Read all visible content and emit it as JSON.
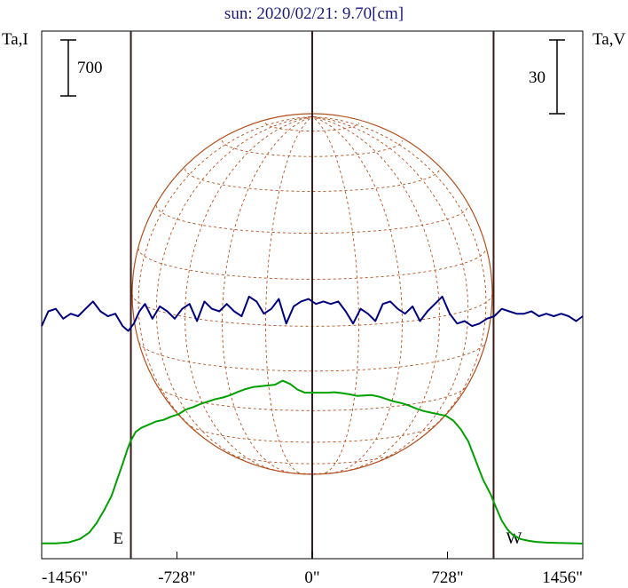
{
  "chart_data": {
    "type": "line",
    "title": "sun: 2020/02/21: 9.70[cm]",
    "y_left_label": "Ta,I",
    "y_right_label": "Ta,V",
    "left_scale_bar_value": "700",
    "right_scale_bar_value": "30",
    "x_ticks": [
      -1456,
      -728,
      0,
      728,
      1456
    ],
    "x_tick_labels": [
      "-1456\"",
      "-728\"",
      "0\"",
      "728\"",
      "1456\""
    ],
    "xlim": [
      -1456,
      1456
    ],
    "vertical_markers": [
      {
        "x": -976,
        "label": "E"
      },
      {
        "x": 0,
        "label": ""
      },
      {
        "x": 976,
        "label": "W"
      }
    ],
    "colors": {
      "stokes_i": "#00a000",
      "stokes_v": "#00007f",
      "disk": "#b4501e",
      "markers": "#3a1a1a",
      "title": "#1a1a7a"
    },
    "series": [
      {
        "name": "I",
        "color": "#00a000",
        "x": [
          -1456,
          -1380,
          -1310,
          -1250,
          -1200,
          -1160,
          -1120,
          -1080,
          -1050,
          -1020,
          -995,
          -976,
          -950,
          -920,
          -880,
          -840,
          -800,
          -760,
          -720,
          -680,
          -640,
          -600,
          -560,
          -520,
          -480,
          -440,
          -400,
          -360,
          -320,
          -280,
          -240,
          -200,
          -160,
          -120,
          -80,
          -40,
          0,
          40,
          80,
          120,
          160,
          200,
          240,
          280,
          320,
          360,
          400,
          440,
          480,
          520,
          560,
          600,
          640,
          680,
          720,
          760,
          800,
          840,
          880,
          920,
          960,
          990,
          1020,
          1050,
          1080,
          1120,
          1160,
          1200,
          1260,
          1320,
          1380,
          1456
        ],
        "values": [
          24,
          26,
          38,
          80,
          160,
          280,
          440,
          620,
          820,
          1020,
          1200,
          1310,
          1420,
          1470,
          1510,
          1550,
          1570,
          1610,
          1640,
          1700,
          1730,
          1770,
          1800,
          1830,
          1850,
          1880,
          1920,
          1955,
          1980,
          1990,
          2000,
          2010,
          2060,
          2020,
          1950,
          1910,
          1910,
          1910,
          1910,
          1915,
          1905,
          1890,
          1870,
          1875,
          1880,
          1860,
          1830,
          1800,
          1780,
          1750,
          1710,
          1680,
          1660,
          1640,
          1620,
          1560,
          1450,
          1300,
          1060,
          820,
          640,
          470,
          310,
          200,
          130,
          80,
          60,
          45,
          35,
          30,
          28,
          22
        ]
      },
      {
        "name": "V",
        "color": "#00007f",
        "x": [
          -1456,
          -1420,
          -1380,
          -1340,
          -1300,
          -1260,
          -1220,
          -1180,
          -1140,
          -1100,
          -1060,
          -1020,
          -990,
          -960,
          -930,
          -900,
          -860,
          -820,
          -780,
          -740,
          -700,
          -660,
          -620,
          -580,
          -540,
          -500,
          -460,
          -420,
          -380,
          -340,
          -300,
          -260,
          -220,
          -180,
          -140,
          -100,
          -60,
          -20,
          20,
          60,
          100,
          140,
          180,
          220,
          260,
          300,
          340,
          380,
          420,
          460,
          500,
          540,
          580,
          620,
          660,
          700,
          740,
          780,
          820,
          860,
          900,
          940,
          980,
          1020,
          1060,
          1100,
          1140,
          1180,
          1220,
          1260,
          1300,
          1340,
          1380,
          1420,
          1456
        ],
        "values": [
          -4,
          2,
          3,
          -1,
          1,
          0,
          3,
          6,
          2,
          0,
          1,
          -4,
          -6,
          -3,
          2,
          5,
          -1,
          4,
          2,
          -1,
          3,
          5,
          -2,
          6,
          3,
          2,
          5,
          2,
          0,
          8,
          6,
          1,
          3,
          7,
          -3,
          4,
          6,
          7,
          5,
          6,
          5,
          6,
          2,
          -3,
          3,
          1,
          -2,
          5,
          6,
          3,
          1,
          4,
          -2,
          2,
          5,
          8,
          1,
          -3,
          -2,
          -4,
          -3,
          -1,
          0,
          3,
          2,
          1,
          1,
          2,
          0,
          1,
          0,
          1,
          0,
          -2,
          0
        ]
      }
    ],
    "disk": {
      "radius_arcsec": 969,
      "grid_lines": "latitude and longitude",
      "grid_style": "dotted"
    }
  }
}
